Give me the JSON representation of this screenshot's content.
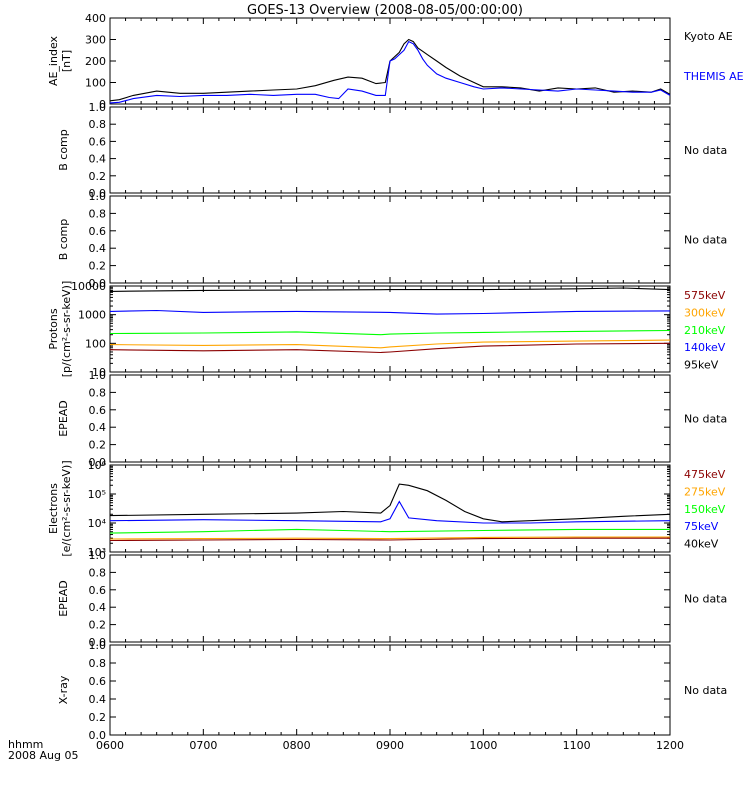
{
  "title": "GOES-13 Overview (2008-08-05/00:00:00)",
  "footer": {
    "line1": "hhmm",
    "line2": "2008 Aug 05"
  },
  "time_ticks": [
    "0600",
    "0700",
    "0800",
    "0900",
    "1000",
    "1100",
    "1200"
  ],
  "chart_data": [
    {
      "type": "line",
      "id": "ae",
      "ylabel": [
        "AE_index",
        "[nT]"
      ],
      "y_scale": "linear",
      "ylim": [
        0,
        400
      ],
      "yticks": [
        "0",
        "100",
        "200",
        "300",
        "400"
      ],
      "series": [
        {
          "name": "Kyoto AE",
          "color": "#000000",
          "x": [
            6.0,
            6.1,
            6.25,
            6.5,
            6.75,
            7.0,
            7.25,
            7.5,
            7.75,
            8.0,
            8.2,
            8.4,
            8.55,
            8.7,
            8.85,
            8.95,
            9.0,
            9.05,
            9.1,
            9.15,
            9.2,
            9.25,
            9.3,
            9.35,
            9.4,
            9.5,
            9.6,
            9.75,
            9.9,
            10.0,
            10.2,
            10.4,
            10.6,
            10.8,
            11.0,
            11.2,
            11.4,
            11.6,
            11.8,
            11.9,
            12.0
          ],
          "y": [
            15,
            20,
            40,
            60,
            50,
            50,
            55,
            60,
            65,
            70,
            85,
            110,
            125,
            120,
            95,
            100,
            200,
            220,
            240,
            280,
            300,
            290,
            260,
            245,
            230,
            200,
            170,
            130,
            100,
            80,
            80,
            75,
            60,
            75,
            70,
            75,
            55,
            60,
            55,
            70,
            45
          ]
        },
        {
          "name": "THEMIS AE",
          "color": "#0000ff",
          "x": [
            6.0,
            6.1,
            6.25,
            6.5,
            6.75,
            7.0,
            7.25,
            7.5,
            7.75,
            8.0,
            8.2,
            8.35,
            8.45,
            8.55,
            8.7,
            8.85,
            8.95,
            9.0,
            9.05,
            9.1,
            9.15,
            9.2,
            9.25,
            9.3,
            9.35,
            9.4,
            9.5,
            9.6,
            9.75,
            9.9,
            10.0,
            10.2,
            10.4,
            10.6,
            10.8,
            11.0,
            11.2,
            11.4,
            11.6,
            11.8,
            11.9,
            12.0
          ],
          "y": [
            5,
            8,
            25,
            40,
            35,
            40,
            40,
            45,
            40,
            45,
            45,
            30,
            25,
            70,
            60,
            40,
            40,
            200,
            210,
            230,
            250,
            290,
            280,
            250,
            210,
            180,
            140,
            120,
            100,
            80,
            70,
            75,
            70,
            65,
            60,
            70,
            65,
            60,
            55,
            55,
            65,
            40
          ]
        }
      ]
    },
    {
      "type": "line",
      "id": "b1",
      "ylabel": [
        "B comp"
      ],
      "y_scale": "linear",
      "ylim": [
        0,
        1
      ],
      "yticks": [
        "0.0",
        "0.2",
        "0.4",
        "0.6",
        "0.8",
        "1.0"
      ],
      "series": [],
      "note": "No data"
    },
    {
      "type": "line",
      "id": "b2",
      "ylabel": [
        "B comp"
      ],
      "y_scale": "linear",
      "ylim": [
        0,
        1
      ],
      "yticks": [
        "0.0",
        "0.2",
        "0.4",
        "0.6",
        "0.8",
        "1.0"
      ],
      "series": [],
      "note": "No data"
    },
    {
      "type": "line",
      "id": "protons",
      "ylabel": [
        "Protons",
        "[p/(cm²-s-sr-keV)]"
      ],
      "y_scale": "log",
      "ylim": [
        10,
        10000
      ],
      "yticks": [
        "10",
        "100",
        "1000",
        "10000"
      ],
      "series": [
        {
          "name": "575keV",
          "color": "#8b0000",
          "x": [
            6.0,
            7.0,
            8.0,
            8.9,
            9.0,
            9.5,
            10.0,
            11.0,
            12.0
          ],
          "y": [
            60,
            55,
            60,
            48,
            50,
            65,
            80,
            95,
            100
          ]
        },
        {
          "name": "300keV",
          "color": "#ffa500",
          "x": [
            6.0,
            7.0,
            8.0,
            8.9,
            9.0,
            9.5,
            10.0,
            11.0,
            12.0
          ],
          "y": [
            90,
            85,
            90,
            70,
            75,
            95,
            110,
            120,
            130
          ]
        },
        {
          "name": "210keV",
          "color": "#00ff00",
          "x": [
            6.0,
            7.0,
            8.0,
            8.9,
            9.0,
            9.5,
            10.0,
            11.0,
            12.0
          ],
          "y": [
            220,
            230,
            250,
            200,
            210,
            230,
            240,
            260,
            280
          ]
        },
        {
          "name": "140keV",
          "color": "#0000ff",
          "x": [
            6.0,
            6.5,
            7.0,
            8.0,
            9.0,
            9.5,
            10.0,
            11.0,
            12.0
          ],
          "y": [
            1300,
            1400,
            1200,
            1300,
            1200,
            1050,
            1100,
            1300,
            1350
          ]
        },
        {
          "name": "95keV",
          "color": "#000000",
          "x": [
            6.0,
            7.0,
            8.0,
            9.0,
            10.0,
            11.0,
            11.5,
            12.0
          ],
          "y": [
            6500,
            7000,
            7200,
            7500,
            7500,
            8000,
            8500,
            7500
          ]
        }
      ]
    },
    {
      "type": "line",
      "id": "epead1",
      "ylabel": [
        "EPEAD"
      ],
      "y_scale": "linear",
      "ylim": [
        0,
        1
      ],
      "yticks": [
        "0.0",
        "0.2",
        "0.4",
        "0.6",
        "0.8",
        "1.0"
      ],
      "series": [],
      "note": "No data"
    },
    {
      "type": "line",
      "id": "electrons",
      "ylabel": [
        "Electrons",
        "[e/(cm²-s-sr-keV)]"
      ],
      "y_scale": "log",
      "ylim": [
        1000,
        1000000
      ],
      "yticks": [
        "10³",
        "10⁴",
        "10⁵",
        "10⁶"
      ],
      "series": [
        {
          "name": "475keV",
          "color": "#8b0000",
          "x": [
            6.0,
            7.0,
            8.0,
            9.0,
            10.0,
            11.0,
            12.0
          ],
          "y": [
            2500,
            2600,
            2700,
            2600,
            2900,
            3000,
            3000
          ]
        },
        {
          "name": "275keV",
          "color": "#ffa500",
          "x": [
            6.0,
            7.0,
            8.0,
            9.0,
            10.0,
            11.0,
            12.0
          ],
          "y": [
            2800,
            2900,
            3000,
            2900,
            3200,
            3300,
            3300
          ]
        },
        {
          "name": "150keV",
          "color": "#00ff00",
          "x": [
            6.0,
            7.0,
            7.5,
            8.0,
            8.5,
            9.0,
            10.0,
            11.0,
            12.0
          ],
          "y": [
            4500,
            5000,
            5500,
            6000,
            5500,
            5000,
            5500,
            6000,
            6000
          ]
        },
        {
          "name": "75keV",
          "color": "#0000ff",
          "x": [
            6.0,
            7.0,
            8.0,
            8.9,
            9.0,
            9.1,
            9.2,
            9.5,
            10.0,
            10.5,
            11.0,
            12.0
          ],
          "y": [
            12000,
            13000,
            12000,
            11000,
            14000,
            55000,
            15000,
            12000,
            10000,
            10000,
            11000,
            12000
          ]
        },
        {
          "name": "40keV",
          "color": "#000000",
          "x": [
            6.0,
            7.0,
            8.0,
            8.5,
            8.9,
            9.0,
            9.1,
            9.2,
            9.4,
            9.6,
            9.8,
            10.0,
            10.2,
            10.5,
            11.0,
            11.5,
            12.0
          ],
          "y": [
            18000,
            20000,
            22000,
            25000,
            22000,
            40000,
            220000,
            200000,
            130000,
            60000,
            25000,
            14000,
            11000,
            12000,
            14000,
            17000,
            20000
          ]
        }
      ]
    },
    {
      "type": "line",
      "id": "epead2",
      "ylabel": [
        "EPEAD"
      ],
      "y_scale": "linear",
      "ylim": [
        0,
        1
      ],
      "yticks": [
        "0.0",
        "0.2",
        "0.4",
        "0.6",
        "0.8",
        "1.0"
      ],
      "series": [],
      "note": "No data"
    },
    {
      "type": "line",
      "id": "xray",
      "ylabel": [
        "X-ray"
      ],
      "y_scale": "linear",
      "ylim": [
        0,
        1
      ],
      "yticks": [
        "0.0",
        "0.2",
        "0.4",
        "0.6",
        "0.8",
        "1.0"
      ],
      "series": [],
      "note": "No data"
    }
  ]
}
